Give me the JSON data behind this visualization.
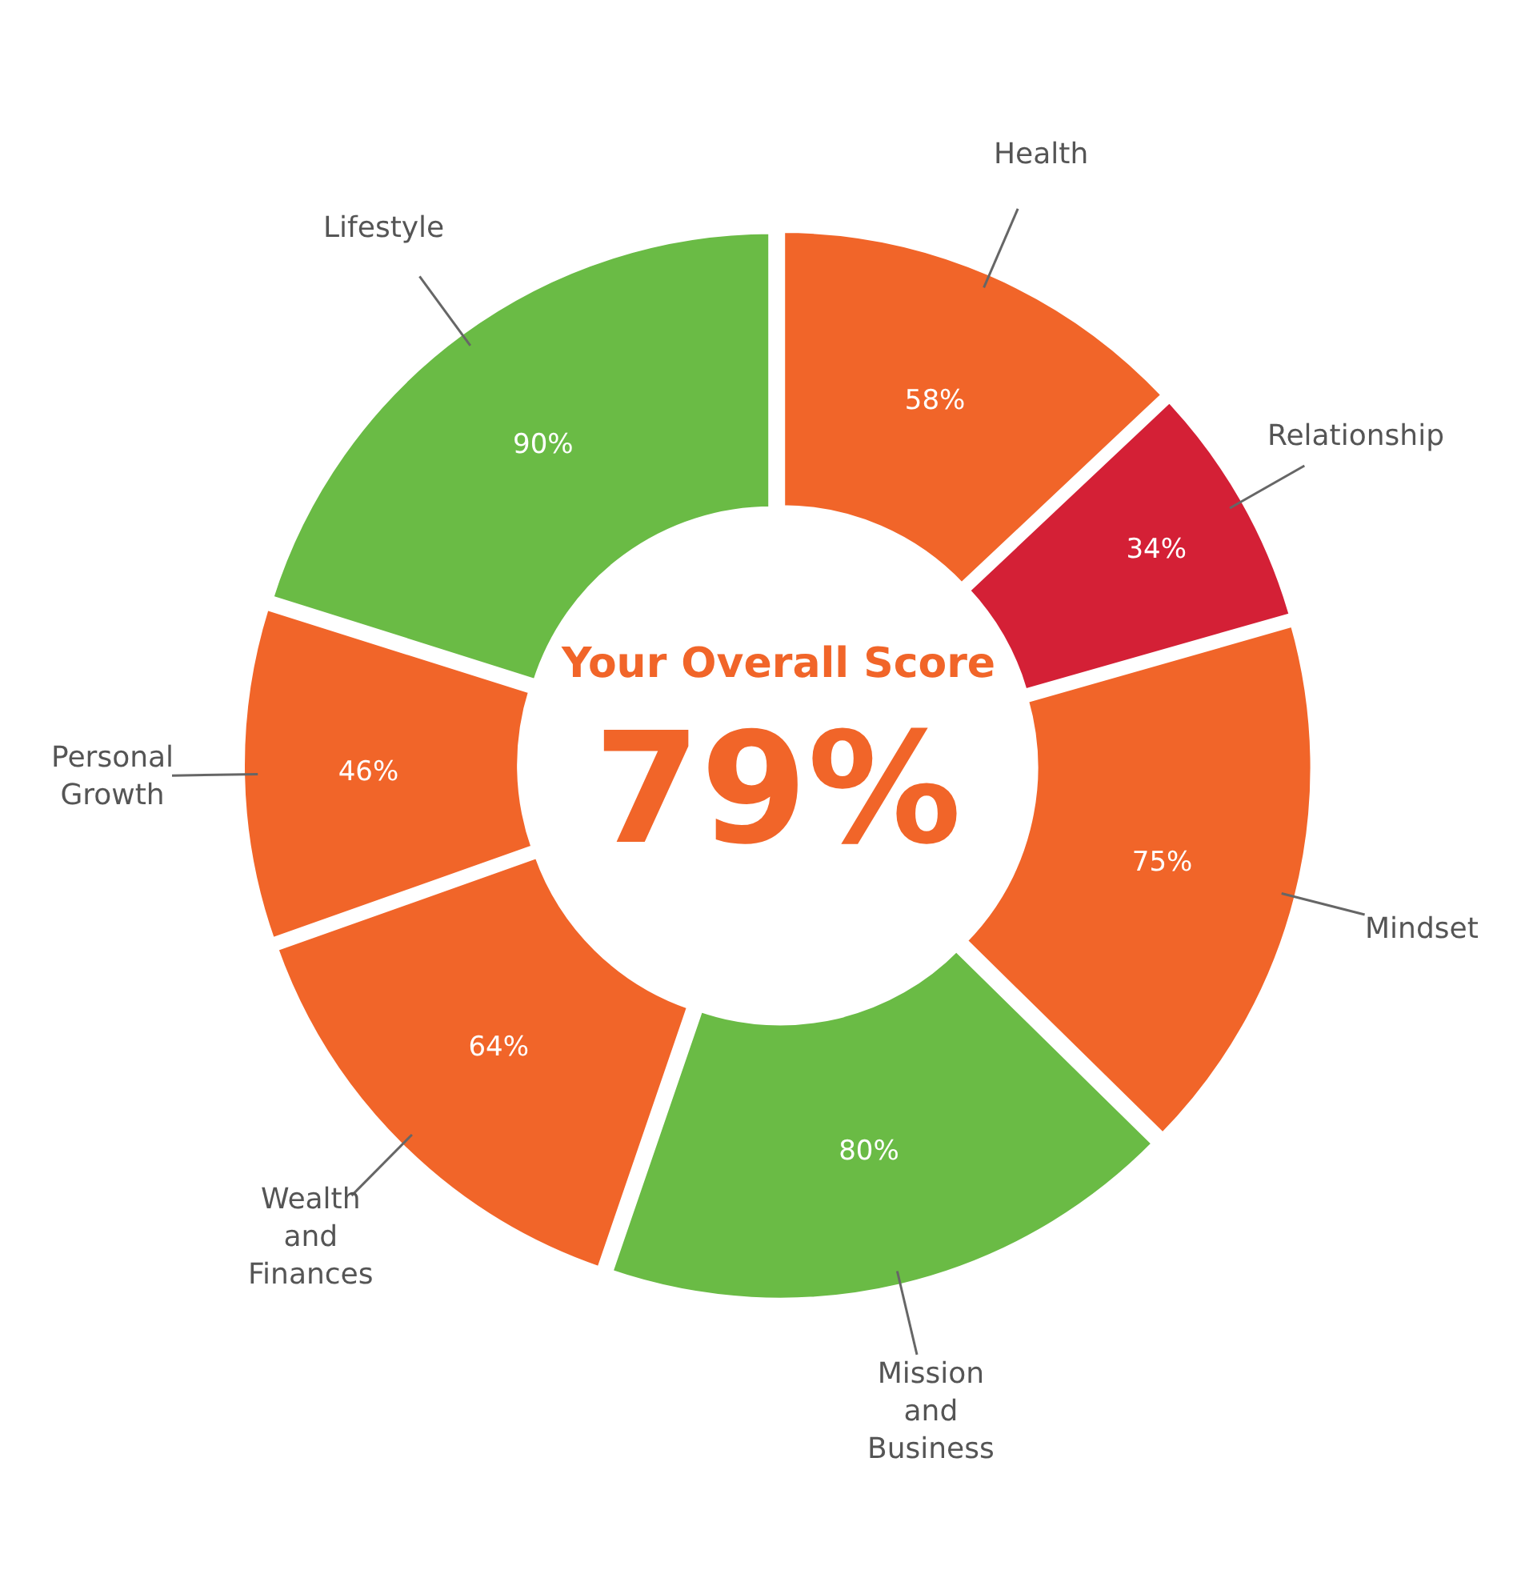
{
  "chart_data": {
    "type": "donut",
    "categories": [
      "Health",
      "Relationship",
      "Mindset",
      "Mission and Business",
      "Wealth and Finances",
      "Personal Growth",
      "Lifestyle"
    ],
    "values": [
      58,
      34,
      75,
      80,
      64,
      46,
      90
    ],
    "value_labels": [
      "58%",
      "34%",
      "75%",
      "80%",
      "64%",
      "46%",
      "90%"
    ],
    "colors": [
      "#f16529",
      "#d42036",
      "#f16529",
      "#6abb45",
      "#f16529",
      "#f16529",
      "#6abb45"
    ],
    "annotations": [
      "Your Overall Score",
      "79%"
    ],
    "legend": false
  }
}
